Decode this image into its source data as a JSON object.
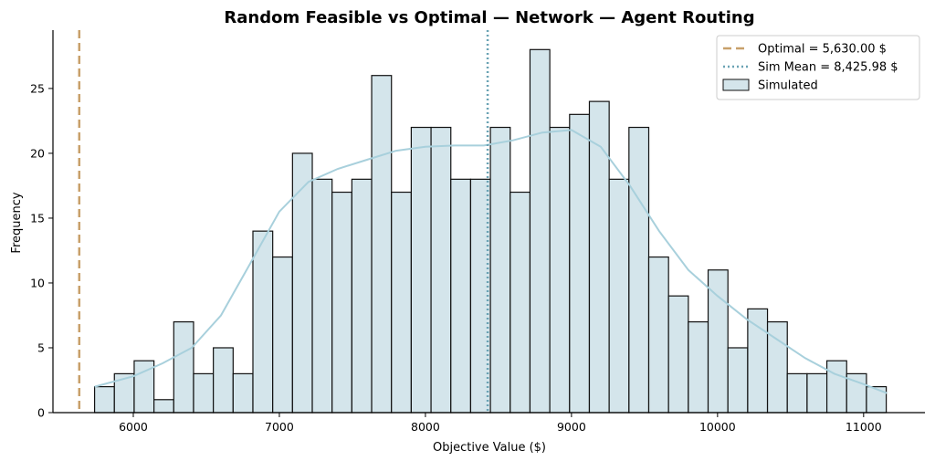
{
  "chart_data": {
    "type": "histogram",
    "title": "Random Feasible vs Optimal — Network — Agent Routing",
    "xlabel": "Objective Value ($)",
    "ylabel": "Frequency",
    "xlim": [
      5450,
      11420
    ],
    "ylim": [
      0,
      29.5
    ],
    "x_ticks": [
      6000,
      7000,
      8000,
      9000,
      10000,
      11000
    ],
    "y_ticks": [
      0,
      5,
      10,
      15,
      20,
      25
    ],
    "grid": false,
    "legend_position": "top-right",
    "bin_start": 5735,
    "bin_width": 135.5,
    "counts": [
      2,
      3,
      4,
      1,
      7,
      3,
      5,
      3,
      14,
      12,
      20,
      18,
      17,
      18,
      26,
      17,
      22,
      22,
      18,
      18,
      22,
      17,
      28,
      22,
      23,
      24,
      18,
      22,
      12,
      9,
      7,
      11,
      5,
      8,
      7,
      3,
      3,
      4,
      3,
      2
    ],
    "kde": [
      [
        5735,
        2.0
      ],
      [
        6000,
        2.8
      ],
      [
        6200,
        3.8
      ],
      [
        6400,
        5.0
      ],
      [
        6600,
        7.5
      ],
      [
        6800,
        11.5
      ],
      [
        7000,
        15.5
      ],
      [
        7200,
        17.8
      ],
      [
        7400,
        18.8
      ],
      [
        7600,
        19.5
      ],
      [
        7800,
        20.2
      ],
      [
        8000,
        20.5
      ],
      [
        8200,
        20.6
      ],
      [
        8400,
        20.6
      ],
      [
        8600,
        21.0
      ],
      [
        8800,
        21.6
      ],
      [
        9000,
        21.8
      ],
      [
        9200,
        20.5
      ],
      [
        9400,
        17.5
      ],
      [
        9600,
        14.0
      ],
      [
        9800,
        11.0
      ],
      [
        10000,
        9.0
      ],
      [
        10200,
        7.2
      ],
      [
        10400,
        5.7
      ],
      [
        10600,
        4.2
      ],
      [
        10800,
        3.0
      ],
      [
        11000,
        2.2
      ],
      [
        11160,
        1.5
      ]
    ],
    "optimal_value": 5630,
    "sim_mean": 8425.98,
    "legend": [
      {
        "label": "Optimal = 5,630.00 $",
        "style": "dashed",
        "color": "#c8a06a"
      },
      {
        "label": "Sim Mean = 8,425.98 $",
        "style": "dotted",
        "color": "#6aa3b4"
      },
      {
        "label": "Simulated",
        "style": "patch",
        "color": "#d4e5eb"
      }
    ],
    "colors": {
      "bar_fill": "#d4e5eb",
      "bar_edge": "#111111",
      "kde": "#a8d0dc",
      "optimal": "#c8a06a",
      "mean": "#6aa3b4"
    }
  }
}
